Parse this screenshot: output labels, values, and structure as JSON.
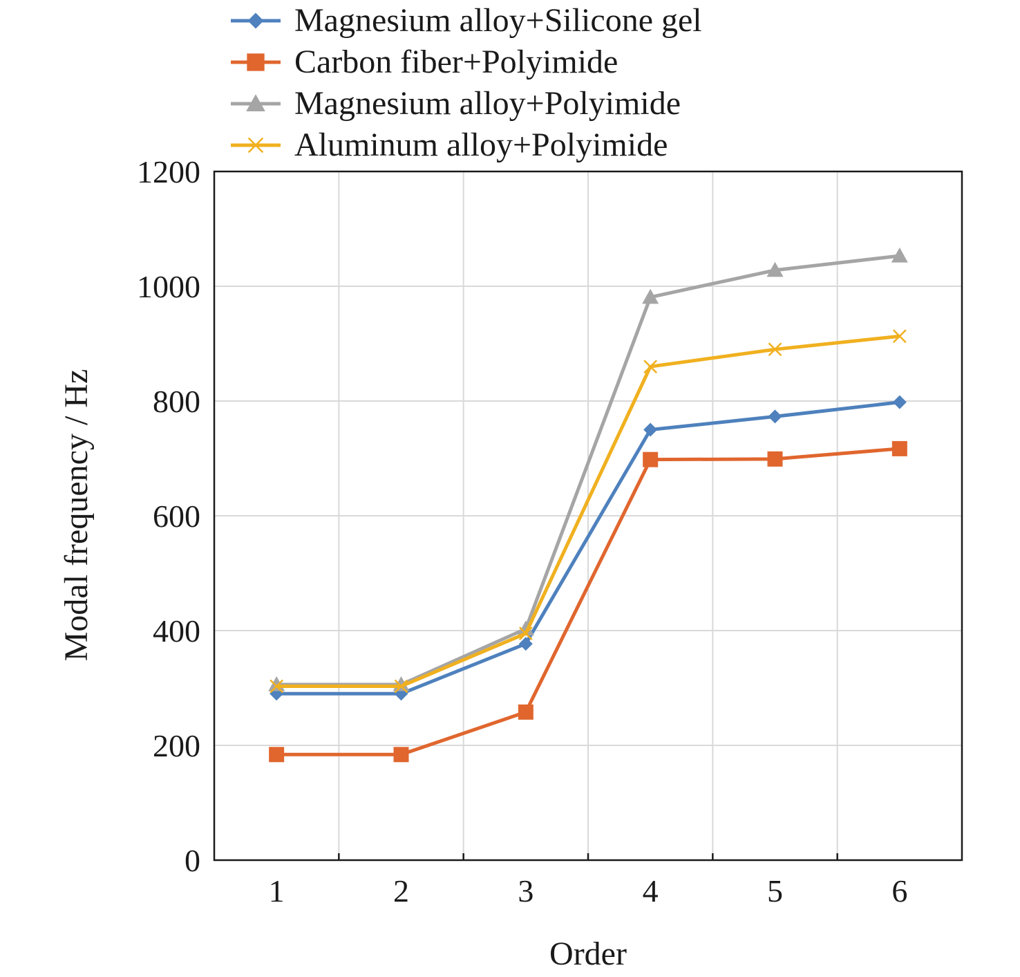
{
  "chart_data": {
    "type": "line",
    "title": "",
    "xlabel": "Order",
    "ylabel": "Modal frequency / Hz",
    "x": [
      1,
      2,
      3,
      4,
      5,
      6
    ],
    "x_tick_labels": [
      "1",
      "2",
      "3",
      "4",
      "5",
      "6"
    ],
    "xlim": [
      0.5,
      6.5
    ],
    "ylim": [
      0,
      1200
    ],
    "y_ticks": [
      0,
      200,
      400,
      600,
      800,
      1000,
      1200
    ],
    "y_tick_labels": [
      "0",
      "200",
      "400",
      "600",
      "800",
      "1000",
      "1200"
    ],
    "grid": true,
    "legend_position": "top",
    "series": [
      {
        "name": "Magnesium alloy+Silicone gel",
        "color": "#4e81bd",
        "marker": "diamond",
        "values": [
          290,
          290,
          377,
          750,
          773,
          798
        ]
      },
      {
        "name": "Carbon fiber+Polyimide",
        "color": "#e0662e",
        "marker": "square",
        "values": [
          184,
          184,
          258,
          698,
          699,
          717
        ]
      },
      {
        "name": "Magnesium alloy+Polyimide",
        "color": "#a5a5a5",
        "marker": "triangle",
        "values": [
          306,
          306,
          403,
          981,
          1028,
          1053
        ]
      },
      {
        "name": "Aluminum alloy+Polyimide",
        "color": "#f0b01f",
        "marker": "x",
        "values": [
          303,
          303,
          395,
          860,
          890,
          913
        ]
      }
    ]
  }
}
